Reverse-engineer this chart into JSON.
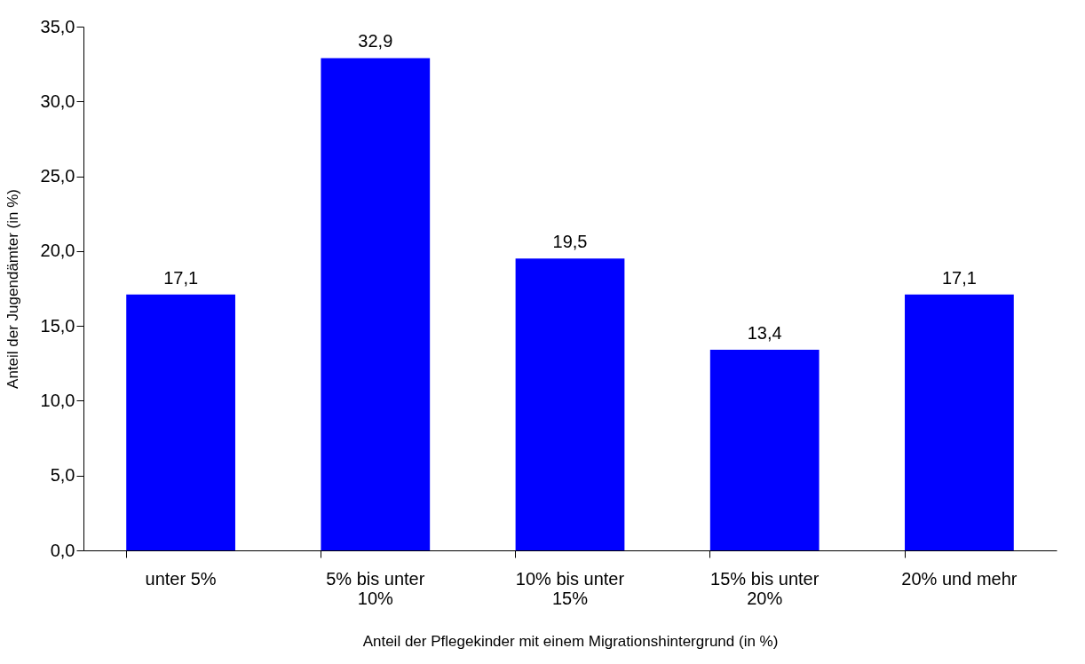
{
  "chart_data": {
    "type": "bar",
    "xlabel": "Anteil der Pflegekinder mit einem Migrationshintergrund (in %)",
    "ylabel": "Anteil der Jugendämter (in %)",
    "categories": [
      "unter 5%",
      "5% bis unter 10%",
      "10% bis unter 15%",
      "15% bis unter 20%",
      "20% und mehr"
    ],
    "values": [
      17.1,
      32.9,
      19.5,
      13.4,
      17.1
    ],
    "value_labels": [
      "17,1",
      "32,9",
      "19,5",
      "13,4",
      "17,1"
    ],
    "color": "#0000ff",
    "ylim": [
      0,
      35
    ],
    "yticks": [
      {
        "value": 0,
        "label": "0,0"
      },
      {
        "value": 5,
        "label": "5,0"
      },
      {
        "value": 10,
        "label": "10,0"
      },
      {
        "value": 15,
        "label": "15,0"
      },
      {
        "value": 20,
        "label": "20,0"
      },
      {
        "value": 25,
        "label": "25,0"
      },
      {
        "value": 30,
        "label": "30,0"
      },
      {
        "value": 35,
        "label": "35,0"
      }
    ],
    "grid": false
  }
}
